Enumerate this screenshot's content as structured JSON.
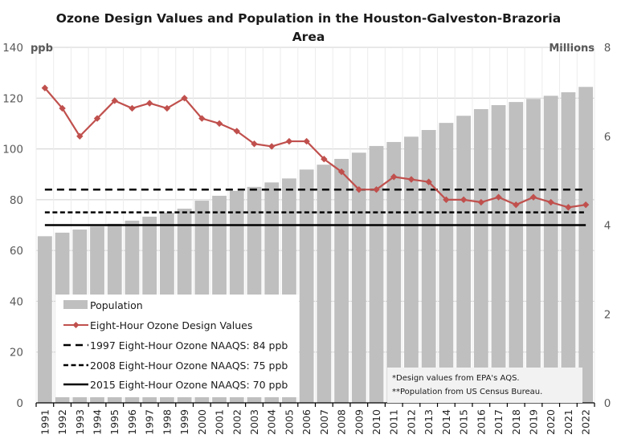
{
  "chart_data": {
    "type": "bar",
    "title_lines": [
      "Ozone Design Values and Population in the Houston-Galveston-Brazoria",
      "Area"
    ],
    "categories": [
      "1991",
      "1992",
      "1993",
      "1994",
      "1995",
      "1996",
      "1997",
      "1998",
      "1999",
      "2000",
      "2001",
      "2002",
      "2003",
      "2004",
      "2005",
      "2006",
      "2007",
      "2008",
      "2009",
      "2010",
      "2011",
      "2012",
      "2013",
      "2014",
      "2015",
      "2016",
      "2017",
      "2018",
      "2019",
      "2020",
      "2021",
      "2022"
    ],
    "y_left": {
      "label": "ppb",
      "ylim": [
        0,
        140
      ],
      "ticks": [
        "0",
        "20",
        "40",
        "60",
        "80",
        "100",
        "120",
        "140"
      ]
    },
    "y_right": {
      "label": "Millions",
      "ylim": [
        0,
        8
      ],
      "ticks": [
        "0",
        "2",
        "4",
        "6",
        "8"
      ]
    },
    "grid": true,
    "series": [
      {
        "name": "Population",
        "type": "bar",
        "axis": "right",
        "color": "#bfbfbf",
        "values": [
          3.75,
          3.83,
          3.9,
          3.97,
          4.03,
          4.1,
          4.19,
          4.28,
          4.37,
          4.55,
          4.66,
          4.77,
          4.86,
          4.96,
          5.05,
          5.25,
          5.36,
          5.49,
          5.63,
          5.78,
          5.87,
          5.99,
          6.14,
          6.3,
          6.46,
          6.61,
          6.7,
          6.77,
          6.84,
          6.91,
          6.99,
          7.11
        ]
      },
      {
        "name": "Eight-Hour Ozone Design Values",
        "type": "line",
        "axis": "left",
        "color": "#c0504d",
        "marker": "diamond",
        "values": [
          124,
          116,
          105,
          112,
          119,
          116,
          118,
          116,
          120,
          112,
          110,
          107,
          102,
          101,
          103,
          103,
          96,
          91,
          84,
          84,
          89,
          88,
          87,
          80,
          80,
          79,
          81,
          78,
          81,
          79,
          77,
          78
        ]
      },
      {
        "name": "1997 Eight-Hour Ozone NAAQS: 84 ppb",
        "type": "hline",
        "axis": "left",
        "value": 84,
        "style": "long-dash",
        "color": "#000000"
      },
      {
        "name": "2008 Eight-Hour Ozone NAAQS: 75 ppb",
        "type": "hline",
        "axis": "left",
        "value": 75,
        "style": "short-dash",
        "color": "#000000"
      },
      {
        "name": "2015 Eight-Hour Ozone NAAQS: 70 ppb",
        "type": "hline",
        "axis": "left",
        "value": 70,
        "style": "solid",
        "color": "#000000"
      }
    ],
    "legend": {
      "placement": "bottom-left",
      "entries": [
        "Population",
        "Eight-Hour Ozone Design Values",
        "1997 Eight-Hour Ozone NAAQS: 84 ppb",
        "2008 Eight-Hour Ozone NAAQS: 75 ppb",
        "2015 Eight-Hour Ozone NAAQS: 70 ppb"
      ]
    },
    "annotations": {
      "placement": "bottom-right",
      "lines": [
        "*Design values from EPA's AQS.",
        "**Population from US Census Bureau."
      ]
    }
  }
}
